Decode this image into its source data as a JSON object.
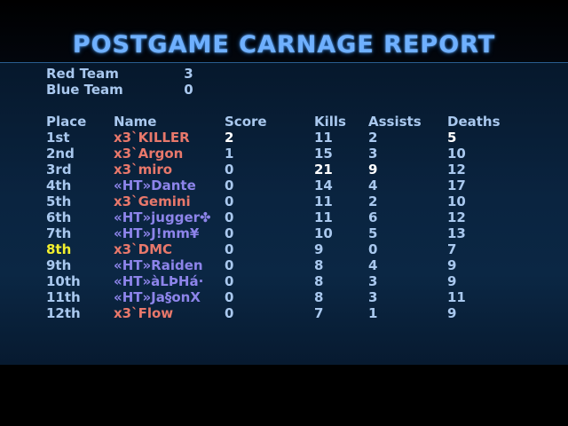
{
  "title": "POSTGAME CARNAGE REPORT",
  "teams": [
    {
      "name": "Red Team",
      "score": "3"
    },
    {
      "name": "Blue Team",
      "score": "0"
    }
  ],
  "headers": {
    "place": "Place",
    "name": "Name",
    "score": "Score",
    "kills": "Kills",
    "assists": "Assists",
    "deaths": "Deaths"
  },
  "colors": {
    "red_team": "#e8786b",
    "blue_team": "#8d84ea",
    "highlight": "#ffffff",
    "self_place": "#f2ef2e",
    "text": "#a9c8ee",
    "title": "#6fb0ff"
  },
  "players": [
    {
      "place": "1st",
      "name": "x3`KILLER",
      "score": "2",
      "kills": "11",
      "assists": "2",
      "deaths": "5"
    },
    {
      "place": "2nd",
      "name": "x3`Argon",
      "score": "1",
      "kills": "15",
      "assists": "3",
      "deaths": "10"
    },
    {
      "place": "3rd",
      "name": "x3`miro",
      "score": "0",
      "kills": "21",
      "assists": "9",
      "deaths": "12"
    },
    {
      "place": "4th",
      "name": "«HT»Dante",
      "score": "0",
      "kills": "14",
      "assists": "4",
      "deaths": "17"
    },
    {
      "place": "5th",
      "name": "x3`Gemini",
      "score": "0",
      "kills": "11",
      "assists": "2",
      "deaths": "10"
    },
    {
      "place": "6th",
      "name": "«HT»jugger✤",
      "score": "0",
      "kills": "11",
      "assists": "6",
      "deaths": "12"
    },
    {
      "place": "7th",
      "name": "«HT»J!mm¥",
      "score": "0",
      "kills": "10",
      "assists": "5",
      "deaths": "13"
    },
    {
      "place": "8th",
      "name": "x3`DMC",
      "score": "0",
      "kills": "9",
      "assists": "0",
      "deaths": "7"
    },
    {
      "place": "9th",
      "name": "«HT»Raiden",
      "score": "0",
      "kills": "8",
      "assists": "4",
      "deaths": "9"
    },
    {
      "place": "10th",
      "name": "«HT»àLÞHá·",
      "score": "0",
      "kills": "8",
      "assists": "3",
      "deaths": "9"
    },
    {
      "place": "11th",
      "name": "«HT»Ja§onX",
      "score": "0",
      "kills": "8",
      "assists": "3",
      "deaths": "11"
    },
    {
      "place": "12th",
      "name": "x3`Flow",
      "score": "0",
      "kills": "7",
      "assists": "1",
      "deaths": "9"
    }
  ]
}
